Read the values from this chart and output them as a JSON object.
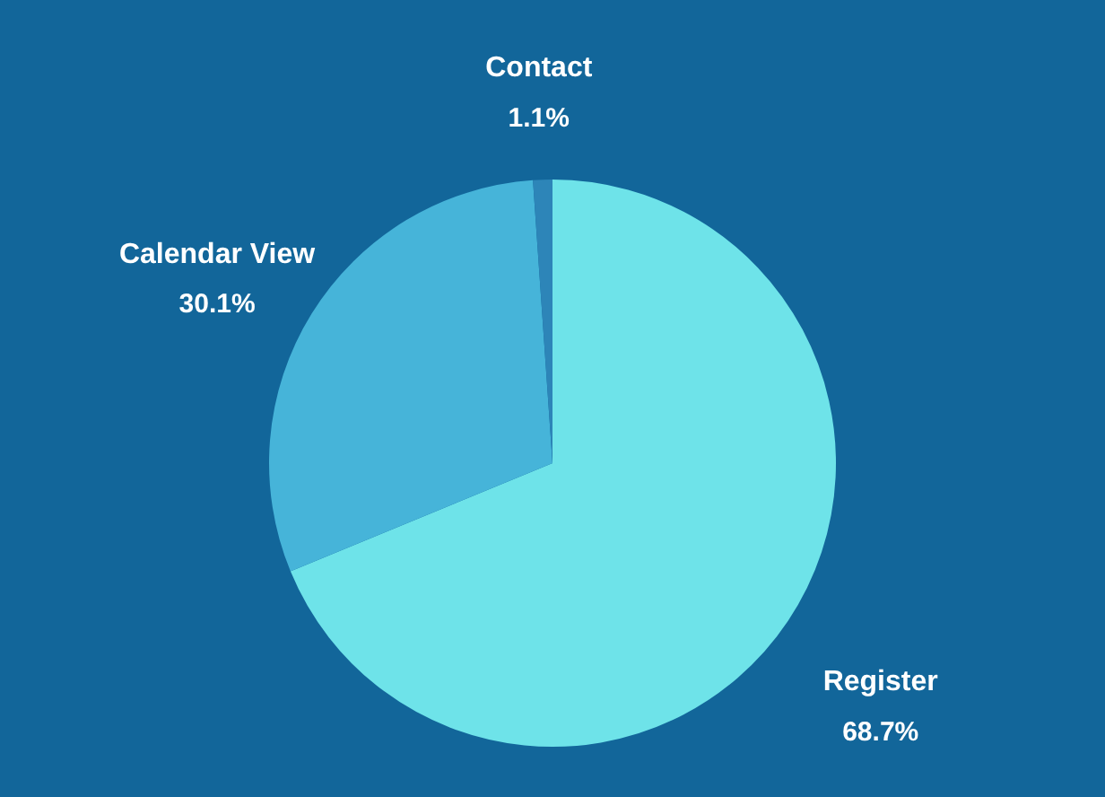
{
  "chart_data": {
    "type": "pie",
    "categories": [
      "Register",
      "Calendar View",
      "Contact"
    ],
    "values": [
      68.7,
      30.1,
      1.1
    ],
    "colors": [
      "#6ee3e9",
      "#46b4d9",
      "#2d85b8"
    ],
    "value_labels": [
      "68.7%",
      "30.1%",
      "1.1%"
    ]
  }
}
